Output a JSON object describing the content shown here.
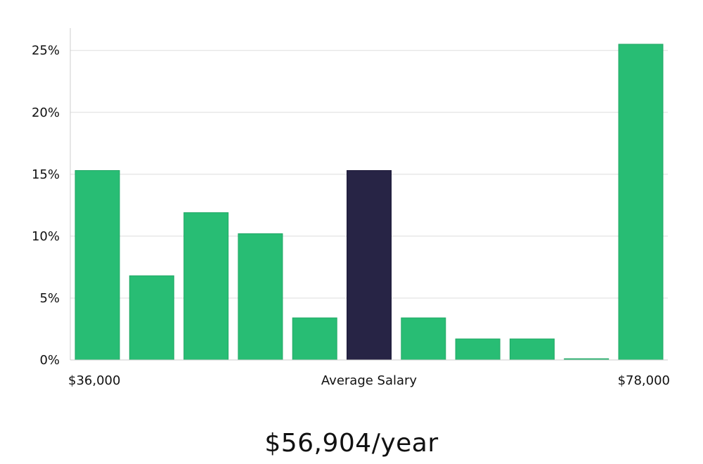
{
  "chart_data": {
    "type": "bar",
    "categories": [
      "1",
      "2",
      "3",
      "4",
      "5",
      "6",
      "7",
      "8",
      "9",
      "10",
      "11"
    ],
    "values": [
      15.3,
      6.8,
      11.9,
      10.2,
      3.4,
      15.3,
      3.4,
      1.7,
      1.7,
      0.1,
      25.5
    ],
    "highlight_index": 5,
    "ylim": [
      0,
      26.8
    ],
    "yticks": [
      0,
      5,
      10,
      15,
      20,
      25
    ],
    "ytick_labels": [
      "0%",
      "5%",
      "10%",
      "15%",
      "20%",
      "25%"
    ],
    "x_labels": {
      "left": "$36,000",
      "center": "Average Salary",
      "right": "$78,000"
    },
    "colors": {
      "bar": "#28bd74",
      "highlight": "#272445",
      "grid": "#dddddd",
      "axis": "#cccccc"
    },
    "grid": true
  },
  "salary_text": "$56,904/year"
}
